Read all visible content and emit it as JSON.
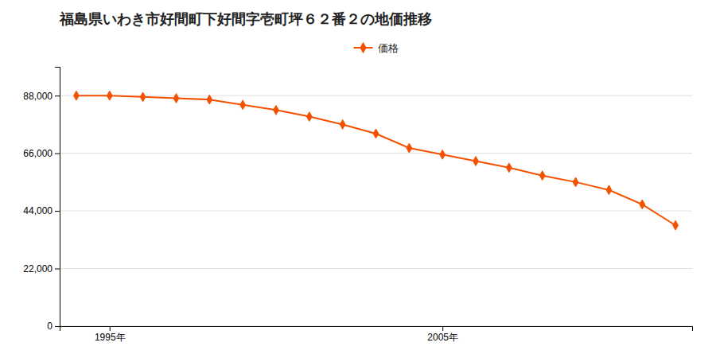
{
  "chart_data": {
    "type": "line",
    "title": "福島県いわき市好間町下好間字壱町坪６２番２の地価推移",
    "x": [
      1994,
      1995,
      1996,
      1997,
      1998,
      1999,
      2000,
      2001,
      2002,
      2003,
      2004,
      2005,
      2006,
      2007,
      2008,
      2009,
      2010,
      2011,
      2012
    ],
    "series": [
      {
        "name": "価格",
        "color": "#f55000",
        "marker": "diamond",
        "values": [
          88000,
          88000,
          87500,
          87000,
          86500,
          84500,
          82500,
          80000,
          77000,
          73500,
          68000,
          65500,
          63000,
          60500,
          57500,
          55000,
          52000,
          46500,
          38500
        ]
      }
    ],
    "xlim": [
      1993.5,
      2012.5
    ],
    "xticks": [
      {
        "value": 1995,
        "label": "1995年"
      },
      {
        "value": 2005,
        "label": "2005年"
      }
    ],
    "ylim": [
      0,
      99000
    ],
    "yticks": [
      0,
      {
        "value": 22000,
        "label": "22,000"
      },
      {
        "value": 44000,
        "label": "44,000"
      },
      {
        "value": 66000,
        "label": "66,000"
      },
      {
        "value": 88000,
        "label": "88,000"
      }
    ],
    "grid": true,
    "legend": "top"
  }
}
